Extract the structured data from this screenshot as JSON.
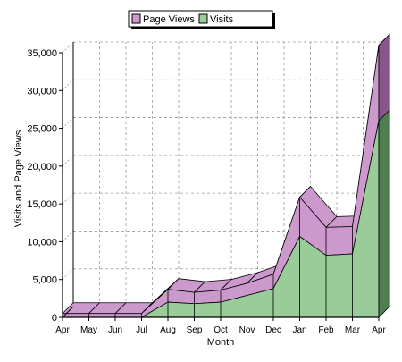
{
  "chart_data": {
    "type": "area",
    "stacked": true,
    "three_d": true,
    "categories": [
      "Apr",
      "May",
      "Jun",
      "Jul",
      "Aug",
      "Sep",
      "Oct",
      "Nov",
      "Dec",
      "Jan",
      "Feb",
      "Mar",
      "Apr"
    ],
    "series": [
      {
        "name": "Visits",
        "values": [
          0,
          0,
          0,
          0,
          2000,
          1800,
          2000,
          2900,
          3800,
          10700,
          8200,
          8400,
          26000
        ]
      },
      {
        "name": "Page Views",
        "values": [
          500,
          500,
          500,
          500,
          1700,
          1500,
          1600,
          1600,
          1900,
          5200,
          3700,
          3600,
          10000
        ]
      }
    ],
    "title": "",
    "xlabel": "Month",
    "ylabel": "Visits and Page Views",
    "ylim": [
      0,
      35000
    ],
    "yticks": [
      0,
      5000,
      10000,
      15000,
      20000,
      25000,
      30000,
      35000
    ],
    "ytick_labels": [
      "0",
      "5,000",
      "10,000",
      "15,000",
      "20,000",
      "25,000",
      "30,000",
      "35,000"
    ],
    "grid": true,
    "legend_position": "top-center",
    "colors": {
      "Visits": "#99cc99",
      "Page Views": "#cc99cc"
    }
  }
}
